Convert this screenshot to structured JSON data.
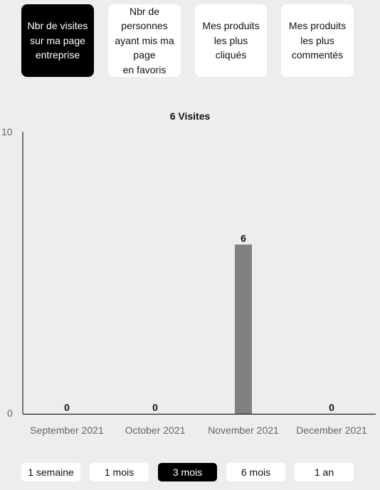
{
  "tabs": [
    {
      "label": "Nbr de visites\nsur ma page\nentreprise",
      "active": true
    },
    {
      "label": "Nbr de\npersonnes\nayant mis ma\npage\nen favoris",
      "active": false
    },
    {
      "label": "Mes produits\nles plus cliqués",
      "active": false
    },
    {
      "label": "Mes produits\nles plus\ncommentés",
      "active": false
    }
  ],
  "chart_data": {
    "type": "bar",
    "title": "6 Visites",
    "categories": [
      "September 2021",
      "October 2021",
      "November 2021",
      "December 2021"
    ],
    "values": [
      0,
      0,
      6,
      0
    ],
    "ylim": [
      0,
      10
    ],
    "ytick_labels": [
      "0",
      "10"
    ],
    "xlabel": "",
    "ylabel": "",
    "bar_color": "#808080",
    "grid": false
  },
  "ranges": [
    {
      "label": "1 semaine",
      "active": false
    },
    {
      "label": "1 mois",
      "active": false
    },
    {
      "label": "3 mois",
      "active": true
    },
    {
      "label": "6 mois",
      "active": false
    },
    {
      "label": "1 an",
      "active": false
    }
  ]
}
